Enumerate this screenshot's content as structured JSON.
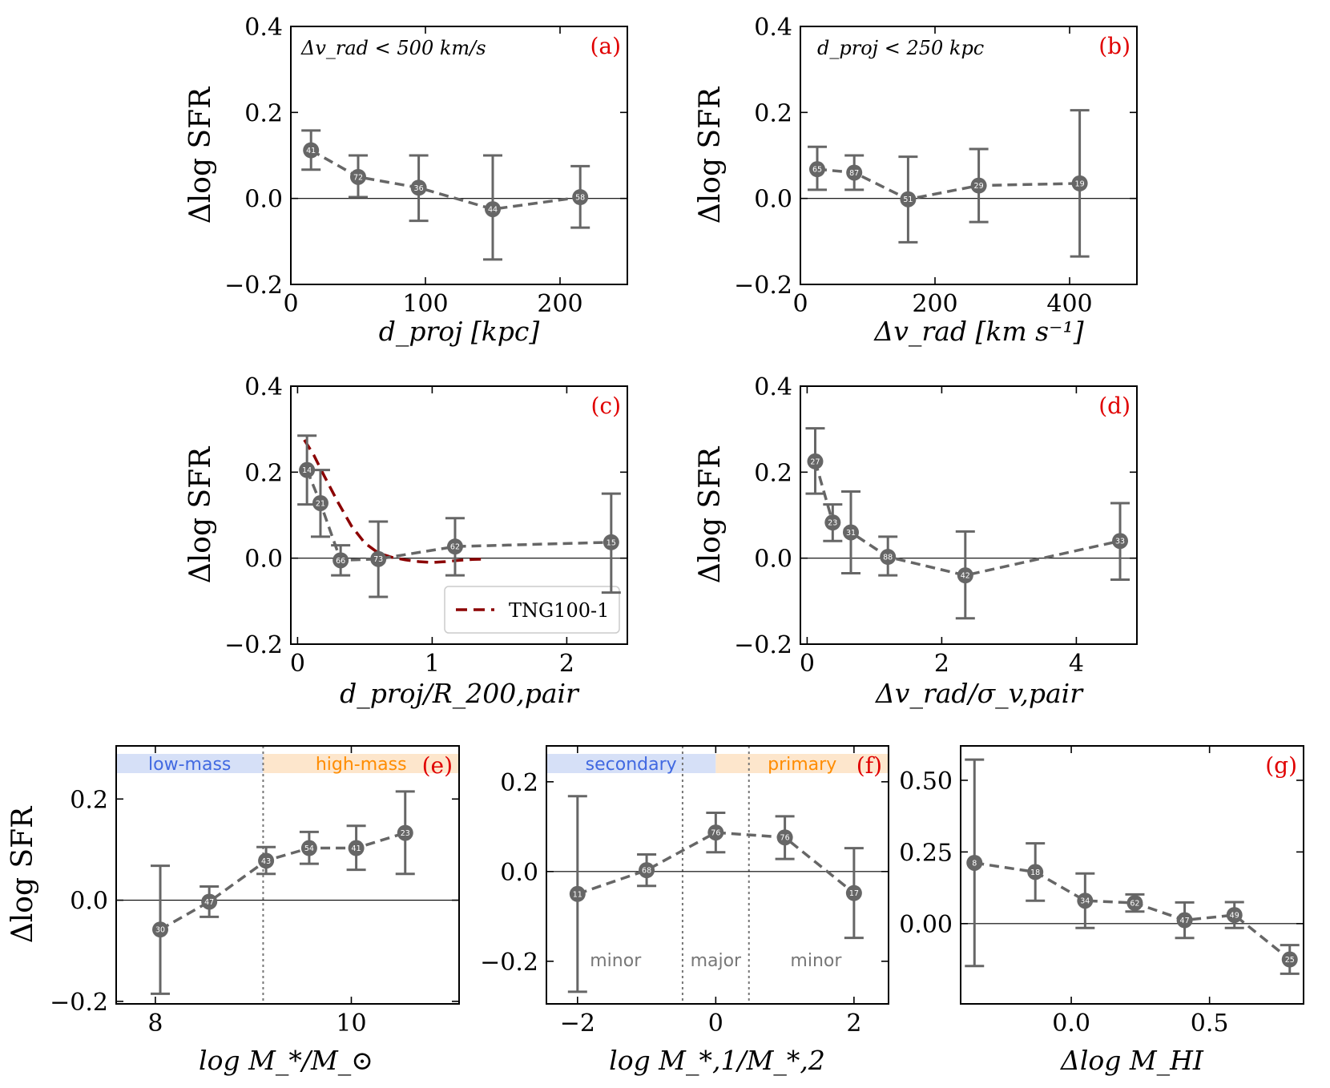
{
  "chart_data": [
    {
      "id": "a",
      "type": "scatter",
      "panel_label": "(a)",
      "annotation": "Δv_rad < 500 km/s",
      "xlabel": "d_proj [kpc]",
      "ylabel": "Δlog SFR",
      "xlim": [
        0,
        250
      ],
      "ylim": [
        -0.2,
        0.4
      ],
      "xticks": [
        0,
        100,
        200
      ],
      "xtick_labels": [
        "0",
        "100",
        "200"
      ],
      "yticks": [
        -0.2,
        0.0,
        0.2,
        0.4
      ],
      "ytick_labels": [
        "−0.2",
        "0.0",
        "0.2",
        "0.4"
      ],
      "points": [
        {
          "x": 15,
          "y": 0.112,
          "lo": 0.067,
          "hi": 0.158,
          "n": "41"
        },
        {
          "x": 50,
          "y": 0.05,
          "lo": 0.003,
          "hi": 0.1,
          "n": "72"
        },
        {
          "x": 95,
          "y": 0.025,
          "lo": -0.052,
          "hi": 0.1,
          "n": "36"
        },
        {
          "x": 150,
          "y": -0.025,
          "lo": -0.142,
          "hi": 0.1,
          "n": "44"
        },
        {
          "x": 215,
          "y": 0.003,
          "lo": -0.068,
          "hi": 0.075,
          "n": "58"
        }
      ]
    },
    {
      "id": "b",
      "type": "scatter",
      "panel_label": "(b)",
      "annotation": "d_proj < 250 kpc",
      "xlabel": "Δv_rad [km s⁻¹]",
      "ylabel": "Δlog SFR",
      "xlim": [
        0,
        500
      ],
      "ylim": [
        -0.2,
        0.4
      ],
      "xticks": [
        0,
        200,
        400
      ],
      "xtick_labels": [
        "0",
        "200",
        "400"
      ],
      "yticks": [
        -0.2,
        0.0,
        0.2,
        0.4
      ],
      "ytick_labels": [
        "−0.2",
        "0.0",
        "0.2",
        "0.4"
      ],
      "points": [
        {
          "x": 25,
          "y": 0.068,
          "lo": 0.02,
          "hi": 0.12,
          "n": "65"
        },
        {
          "x": 80,
          "y": 0.06,
          "lo": 0.02,
          "hi": 0.1,
          "n": "87"
        },
        {
          "x": 160,
          "y": -0.002,
          "lo": -0.102,
          "hi": 0.097,
          "n": "51"
        },
        {
          "x": 265,
          "y": 0.03,
          "lo": -0.055,
          "hi": 0.115,
          "n": "29"
        },
        {
          "x": 415,
          "y": 0.035,
          "lo": -0.135,
          "hi": 0.205,
          "n": "19"
        }
      ]
    },
    {
      "id": "c",
      "type": "scatter",
      "panel_label": "(c)",
      "xlabel": "d_proj/R_200,pair",
      "ylabel": "Δlog SFR",
      "xlim": [
        -0.05,
        2.45
      ],
      "ylim": [
        -0.2,
        0.4
      ],
      "xticks": [
        0,
        1,
        2
      ],
      "xtick_labels": [
        "0",
        "1",
        "2"
      ],
      "yticks": [
        -0.2,
        0.0,
        0.2,
        0.4
      ],
      "ytick_labels": [
        "−0.2",
        "0.0",
        "0.2",
        "0.4"
      ],
      "points": [
        {
          "x": 0.07,
          "y": 0.205,
          "lo": 0.125,
          "hi": 0.285,
          "n": "14"
        },
        {
          "x": 0.17,
          "y": 0.128,
          "lo": 0.05,
          "hi": 0.205,
          "n": "21"
        },
        {
          "x": 0.32,
          "y": -0.005,
          "lo": -0.04,
          "hi": 0.03,
          "n": "66"
        },
        {
          "x": 0.6,
          "y": -0.002,
          "lo": -0.09,
          "hi": 0.085,
          "n": "73"
        },
        {
          "x": 1.17,
          "y": 0.027,
          "lo": -0.04,
          "hi": 0.093,
          "n": "62"
        },
        {
          "x": 2.33,
          "y": 0.037,
          "lo": -0.08,
          "hi": 0.15,
          "n": "15"
        }
      ],
      "tng_series": {
        "name": "TNG100-1",
        "x": [
          0.05,
          0.12,
          0.2,
          0.3,
          0.4,
          0.5,
          0.6,
          0.7,
          0.8,
          0.9,
          1.0,
          1.1,
          1.2,
          1.3,
          1.4
        ],
        "y": [
          0.275,
          0.24,
          0.19,
          0.13,
          0.075,
          0.035,
          0.012,
          0.002,
          -0.004,
          -0.008,
          -0.01,
          -0.008,
          -0.005,
          -0.003,
          -0.002
        ]
      }
    },
    {
      "id": "d",
      "type": "scatter",
      "panel_label": "(d)",
      "xlabel": "Δv_rad/σ_v,pair",
      "ylabel": "Δlog SFR",
      "xlim": [
        -0.1,
        4.9
      ],
      "ylim": [
        -0.2,
        0.4
      ],
      "xticks": [
        0,
        2,
        4
      ],
      "xtick_labels": [
        "0",
        "2",
        "4"
      ],
      "yticks": [
        -0.2,
        0.0,
        0.2,
        0.4
      ],
      "ytick_labels": [
        "−0.2",
        "0.0",
        "0.2",
        "0.4"
      ],
      "points": [
        {
          "x": 0.12,
          "y": 0.225,
          "lo": 0.15,
          "hi": 0.302,
          "n": "27"
        },
        {
          "x": 0.38,
          "y": 0.083,
          "lo": 0.04,
          "hi": 0.125,
          "n": "23"
        },
        {
          "x": 0.65,
          "y": 0.06,
          "lo": -0.035,
          "hi": 0.155,
          "n": "31"
        },
        {
          "x": 1.2,
          "y": 0.003,
          "lo": -0.04,
          "hi": 0.05,
          "n": "88"
        },
        {
          "x": 2.35,
          "y": -0.04,
          "lo": -0.14,
          "hi": 0.062,
          "n": "42"
        },
        {
          "x": 4.65,
          "y": 0.04,
          "lo": -0.05,
          "hi": 0.128,
          "n": "33"
        }
      ]
    },
    {
      "id": "e",
      "type": "scatter",
      "panel_label": "(e)",
      "xlabel": "log M_*/M_⊙",
      "ylabel": "Δlog SFR",
      "xlim": [
        7.6,
        11.1
      ],
      "ylim": [
        -0.205,
        0.305
      ],
      "xticks": [
        8,
        10
      ],
      "xtick_labels": [
        "8",
        "10"
      ],
      "yticks": [
        -0.2,
        0.0,
        0.2
      ],
      "ytick_labels": [
        "−0.2",
        "0.0",
        "0.2"
      ],
      "vlines": [
        9.1
      ],
      "bands": [
        {
          "text": "low-mass",
          "x0": 7.6,
          "x1": 9.1,
          "color": "#d6e0f7",
          "text_color": "#4169e1"
        },
        {
          "text": "high-mass",
          "x0": 9.1,
          "x1": 11.1,
          "color": "#fde6cc",
          "text_color": "#ff8c00"
        }
      ],
      "points": [
        {
          "x": 8.05,
          "y": -0.058,
          "lo": -0.185,
          "hi": 0.068,
          "n": "30"
        },
        {
          "x": 8.55,
          "y": -0.003,
          "lo": -0.033,
          "hi": 0.027,
          "n": "47"
        },
        {
          "x": 9.13,
          "y": 0.078,
          "lo": 0.052,
          "hi": 0.105,
          "n": "43"
        },
        {
          "x": 9.57,
          "y": 0.103,
          "lo": 0.072,
          "hi": 0.135,
          "n": "54"
        },
        {
          "x": 10.05,
          "y": 0.103,
          "lo": 0.06,
          "hi": 0.147,
          "n": "41"
        },
        {
          "x": 10.55,
          "y": 0.133,
          "lo": 0.052,
          "hi": 0.215,
          "n": "23"
        }
      ]
    },
    {
      "id": "f",
      "type": "scatter",
      "panel_label": "(f)",
      "xlabel": "log M_*,1/M_*,2",
      "ylabel": "",
      "xlim": [
        -2.45,
        2.5
      ],
      "ylim": [
        -0.295,
        0.28
      ],
      "xticks": [
        -2,
        0,
        2
      ],
      "xtick_labels": [
        "−2",
        "0",
        "2"
      ],
      "yticks": [
        -0.2,
        0.0,
        0.2
      ],
      "ytick_labels": [
        "−0.2",
        "0.0",
        "0.2"
      ],
      "vlines": [
        -0.48,
        0.48
      ],
      "bands": [
        {
          "text": "secondary",
          "x0": -2.45,
          "x1": 0.0,
          "color": "#d6e0f7",
          "text_color": "#4169e1"
        },
        {
          "text": "primary",
          "x0": 0.0,
          "x1": 2.5,
          "color": "#fde6cc",
          "text_color": "#ff8c00"
        }
      ],
      "regions": [
        {
          "text": "minor",
          "x": -1.45
        },
        {
          "text": "major",
          "x": 0.0
        },
        {
          "text": "minor",
          "x": 1.45
        }
      ],
      "points": [
        {
          "x": -2.0,
          "y": -0.05,
          "lo": -0.268,
          "hi": 0.168,
          "n": "11"
        },
        {
          "x": -1.0,
          "y": 0.003,
          "lo": -0.032,
          "hi": 0.038,
          "n": "68"
        },
        {
          "x": 0.0,
          "y": 0.087,
          "lo": 0.043,
          "hi": 0.131,
          "n": "76"
        },
        {
          "x": 1.0,
          "y": 0.076,
          "lo": 0.028,
          "hi": 0.123,
          "n": "76"
        },
        {
          "x": 2.0,
          "y": -0.048,
          "lo": -0.148,
          "hi": 0.052,
          "n": "17"
        }
      ]
    },
    {
      "id": "g",
      "type": "scatter",
      "panel_label": "(g)",
      "xlabel": "Δlog M_HI",
      "ylabel": "",
      "xlim": [
        -0.4,
        0.84
      ],
      "ylim": [
        -0.28,
        0.62
      ],
      "xticks": [
        0.0,
        0.5
      ],
      "xtick_labels": [
        "0.0",
        "0.5"
      ],
      "yticks": [
        0.0,
        0.25,
        0.5
      ],
      "ytick_labels": [
        "0.00",
        "0.25",
        "0.50"
      ],
      "points": [
        {
          "x": -0.35,
          "y": 0.212,
          "lo": -0.148,
          "hi": 0.572,
          "n": "8"
        },
        {
          "x": -0.13,
          "y": 0.18,
          "lo": 0.08,
          "hi": 0.28,
          "n": "18"
        },
        {
          "x": 0.05,
          "y": 0.08,
          "lo": -0.015,
          "hi": 0.175,
          "n": "34"
        },
        {
          "x": 0.23,
          "y": 0.072,
          "lo": 0.042,
          "hi": 0.102,
          "n": "62"
        },
        {
          "x": 0.41,
          "y": 0.012,
          "lo": -0.05,
          "hi": 0.074,
          "n": "47"
        },
        {
          "x": 0.59,
          "y": 0.03,
          "lo": -0.015,
          "hi": 0.075,
          "n": "49"
        },
        {
          "x": 0.79,
          "y": -0.125,
          "lo": -0.175,
          "hi": -0.075,
          "n": "25"
        }
      ]
    }
  ],
  "legend": {
    "tng_label": "TNG100-1"
  },
  "colors": {
    "series": "#666666",
    "tng": "#8b0000",
    "panel_label": "#e00000"
  }
}
